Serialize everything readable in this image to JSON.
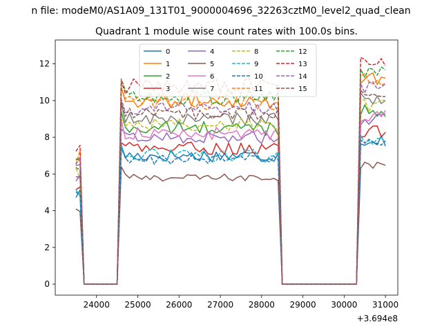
{
  "figure": {
    "suptitle": "n file: modeM0/AS1A09_131T01_9000004696_32263cztM0_level2_quad_clean",
    "title": "Quadrant 1 module wise count rates with 100.0s bins.",
    "offset_label": "+3.694e8"
  },
  "chart_data": {
    "type": "line",
    "title": "Quadrant 1 module wise count rates with 100.0s bins.",
    "xlabel": "",
    "ylabel": "",
    "x_offset": 369400000,
    "xlim": [
      23000,
      31300
    ],
    "ylim": [
      -0.6,
      13.3
    ],
    "xticks": [
      24000,
      25000,
      26000,
      27000,
      28000,
      29000,
      30000,
      31000
    ],
    "xtick_labels": [
      "24000",
      "25000",
      "26000",
      "27000",
      "28000",
      "29000",
      "30000",
      "31000"
    ],
    "yticks": [
      0,
      2,
      4,
      6,
      8,
      10,
      12
    ],
    "ytick_labels": [
      "0",
      "2",
      "4",
      "6",
      "8",
      "10",
      "12"
    ],
    "grid": false,
    "legend": {
      "placement": "top-center",
      "columns": 4
    },
    "active_windows": [
      {
        "start": 23500,
        "end": 23600,
        "level_scale": 0.7
      },
      {
        "start": 24600,
        "end": 28400,
        "level_scale": 1.0
      },
      {
        "start": 30400,
        "end": 31000,
        "level_scale": 1.12
      }
    ],
    "x_start": 23500,
    "x_step": 100,
    "x_end": 31000,
    "series": [
      {
        "name": "0",
        "color": "#1f77b4",
        "dash": "solid",
        "level": 7.0,
        "noise": 0.35
      },
      {
        "name": "1",
        "color": "#ff7f0e",
        "dash": "solid",
        "level": 10.0,
        "noise": 0.4
      },
      {
        "name": "2",
        "color": "#2ca02c",
        "dash": "solid",
        "level": 8.5,
        "noise": 0.4
      },
      {
        "name": "3",
        "color": "#d62728",
        "dash": "solid",
        "level": 7.4,
        "noise": 0.35
      },
      {
        "name": "4",
        "color": "#9467bd",
        "dash": "solid",
        "level": 8.0,
        "noise": 0.35
      },
      {
        "name": "5",
        "color": "#8c564b",
        "dash": "solid",
        "level": 5.8,
        "noise": 0.2
      },
      {
        "name": "6",
        "color": "#e377c2",
        "dash": "solid",
        "level": 8.2,
        "noise": 0.35
      },
      {
        "name": "7",
        "color": "#7f7f7f",
        "dash": "solid",
        "level": 9.0,
        "noise": 0.35
      },
      {
        "name": "8",
        "color": "#bcbd22",
        "dash": "dashed",
        "level": 8.7,
        "noise": 0.35
      },
      {
        "name": "9",
        "color": "#17becf",
        "dash": "dashed",
        "level": 7.0,
        "noise": 0.35
      },
      {
        "name": "10",
        "color": "#1f77b4",
        "dash": "dashed",
        "level": 6.8,
        "noise": 0.3
      },
      {
        "name": "11",
        "color": "#ff7f0e",
        "dash": "dashed",
        "level": 9.9,
        "noise": 0.4
      },
      {
        "name": "12",
        "color": "#2ca02c",
        "dash": "dashed",
        "level": 10.2,
        "noise": 0.45
      },
      {
        "name": "13",
        "color": "#d62728",
        "dash": "dashed",
        "level": 10.8,
        "noise": 0.45
      },
      {
        "name": "14",
        "color": "#9467bd",
        "dash": "dashed",
        "level": 9.6,
        "noise": 0.35
      },
      {
        "name": "15",
        "color": "#8c564b",
        "dash": "dashed",
        "level": 9.3,
        "noise": 0.35
      }
    ]
  }
}
